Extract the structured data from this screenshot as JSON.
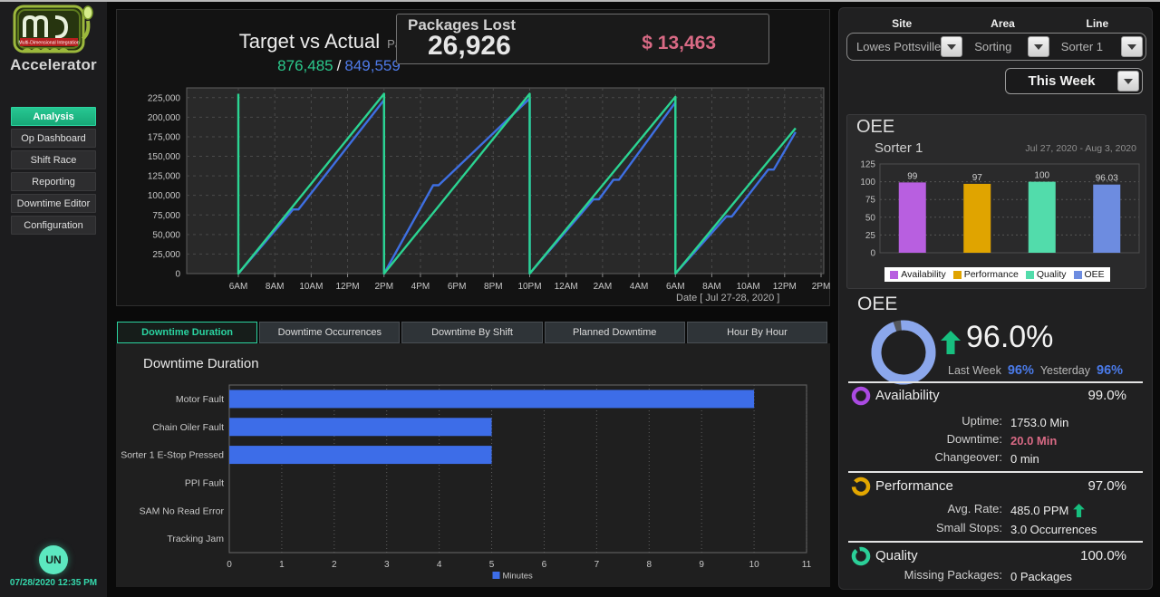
{
  "sidebar": {
    "logo_text": "Multi-Dimensional Integration",
    "brand": "Accelerator",
    "items": [
      {
        "label": "Analysis",
        "active": true
      },
      {
        "label": "Op Dashboard",
        "active": false
      },
      {
        "label": "Shift Race",
        "active": false
      },
      {
        "label": "Reporting",
        "active": false
      },
      {
        "label": "Downtime Editor",
        "active": false
      },
      {
        "label": "Configuration",
        "active": false
      }
    ],
    "avatar_initials": "UN",
    "timestamp": "07/28/2020 12:35 PM"
  },
  "header": {
    "title": "Target vs Actual",
    "units": "Packages",
    "target_value": "876,485",
    "separator": "/",
    "actual_value": "849,559",
    "packages_lost": {
      "label": "Packages Lost",
      "count": "26,926",
      "cost": "$ 13,463"
    }
  },
  "filters": {
    "site": {
      "label": "Site",
      "value": "Lowes Pottsville"
    },
    "area": {
      "label": "Area",
      "value": "Sorting"
    },
    "line": {
      "label": "Line",
      "value": "Sorter 1"
    },
    "period": {
      "value": "This Week"
    }
  },
  "tabs": [
    {
      "label": "Downtime Duration",
      "active": true
    },
    {
      "label": "Downtime Occurrences",
      "active": false
    },
    {
      "label": "Downtime By Shift",
      "active": false
    },
    {
      "label": "Planned Downtime",
      "active": false
    },
    {
      "label": "Hour By Hour",
      "active": false
    }
  ],
  "downtime_section_title": "Downtime Duration",
  "oee_panel": {
    "chart_title": "OEE",
    "chart_subtitle": "Sorter 1",
    "date_range": "Jul 27, 2020 - Aug 3, 2020",
    "summary_title": "OEE",
    "summary_value": "96.0%",
    "last_week_label": "Last Week",
    "last_week_value": "96%",
    "yesterday_label": "Yesterday",
    "yesterday_value": "96%",
    "availability": {
      "label": "Availability",
      "value": "99.0%",
      "rows": [
        {
          "label": "Uptime:",
          "value": "1753.0 Min"
        },
        {
          "label": "Downtime:",
          "value": "20.0 Min"
        },
        {
          "label": "Changeover:",
          "value": "0 min"
        }
      ]
    },
    "performance": {
      "label": "Performance",
      "value": "97.0%",
      "rows": [
        {
          "label": "Avg. Rate:",
          "value": "485.0 PPM"
        },
        {
          "label": "Small Stops:",
          "value": "3.0 Occurrences"
        }
      ]
    },
    "quality": {
      "label": "Quality",
      "value": "100.0%",
      "rows": [
        {
          "label": "Missing Packages:",
          "value": "0 Packages"
        }
      ]
    }
  },
  "colors": {
    "accent_green": "#2bd492",
    "accent_blue": "#3e6fe2",
    "alert_pink": "#d96a85",
    "availability_purple": "#b85fe0",
    "performance_gold": "#e0a400",
    "quality_teal": "#52dcab",
    "oee_blue": "#6d8ce0",
    "up_arrow_green": "#17bf7f"
  },
  "chart_data": [
    {
      "id": "target_vs_actual",
      "type": "line",
      "title": "Target vs Actual",
      "xlabel": "Date  [ Jul 27-28, 2020 ]",
      "x_ticks": [
        "6AM",
        "8AM",
        "10AM",
        "12PM",
        "2PM",
        "4PM",
        "6PM",
        "8PM",
        "10PM",
        "12AM",
        "2AM",
        "4AM",
        "6AM",
        "8AM",
        "10AM",
        "12PM",
        "2PM"
      ],
      "x_hours_range": [
        0,
        32
      ],
      "ylim": [
        0,
        237500
      ],
      "y_tick_step": 25000,
      "y_max_tick": 225000,
      "grid": true,
      "series": [
        {
          "name": "Actual",
          "color": "#3e6fe2",
          "points": [
            [
              0,
              0
            ],
            [
              3.0,
              82000
            ],
            [
              3.3,
              82000
            ],
            [
              8,
              222000
            ],
            [
              8,
              0
            ],
            [
              10.7,
              113000
            ],
            [
              11.0,
              113000
            ],
            [
              16,
              224000
            ],
            [
              16,
              0
            ],
            [
              19.5,
              95000
            ],
            [
              19.8,
              95000
            ],
            [
              20.6,
              120000
            ],
            [
              20.9,
              120000
            ],
            [
              24,
              219000
            ],
            [
              24,
              0
            ],
            [
              26.8,
              73000
            ],
            [
              27.1,
              73000
            ],
            [
              29.1,
              133000
            ],
            [
              29.4,
              133000
            ],
            [
              30.6,
              181000
            ]
          ]
        },
        {
          "name": "Target",
          "color": "#2bd492",
          "points": [
            [
              0,
              230000
            ],
            [
              0,
              0
            ],
            [
              8,
              230000
            ],
            [
              8,
              0
            ],
            [
              16,
              230000
            ],
            [
              16,
              0
            ],
            [
              24,
              226000
            ],
            [
              24,
              0
            ],
            [
              30.6,
              186000
            ]
          ]
        }
      ]
    },
    {
      "id": "oee_bars",
      "type": "bar",
      "categories": [
        "Availability",
        "Performance",
        "Quality",
        "OEE"
      ],
      "values": [
        99,
        97,
        100,
        96.03
      ],
      "value_labels": [
        "99",
        "97",
        "100",
        "96.03"
      ],
      "colors": [
        "#b85fe0",
        "#e0a400",
        "#52dcab",
        "#6d8ce0"
      ],
      "ylim": [
        0,
        125
      ],
      "y_ticks": [
        0,
        25,
        50,
        75,
        100,
        125
      ],
      "grid": true,
      "legend_position": "bottom",
      "legend": [
        {
          "label": "Availability",
          "color": "#b85fe0"
        },
        {
          "label": "Performance",
          "color": "#e0a400"
        },
        {
          "label": "Quality",
          "color": "#52dcab"
        },
        {
          "label": "OEE",
          "color": "#6d8ce0"
        }
      ]
    },
    {
      "id": "downtime_duration",
      "type": "bar_h",
      "title": "Downtime Duration",
      "categories": [
        "Motor Fault",
        "Chain Oiler Fault",
        "Sorter 1 E-Stop Pressed",
        "PPI Fault",
        "SAM No Read Error",
        "Tracking Jam"
      ],
      "values": [
        10,
        5,
        5,
        0,
        0,
        0
      ],
      "bar_color": "#3d6de8",
      "xlim": [
        0,
        11
      ],
      "x_ticks": [
        0,
        1,
        2,
        3,
        4,
        5,
        6,
        7,
        8,
        9,
        10,
        11
      ],
      "grid": true,
      "legend_position": "bottom",
      "legend": [
        {
          "label": "Minutes",
          "color": "#3d6de8"
        }
      ]
    },
    {
      "id": "oee_donut",
      "type": "donut",
      "value": 96,
      "max": 100,
      "color": "#8ba7ec",
      "rest_color": "#54575c"
    }
  ]
}
